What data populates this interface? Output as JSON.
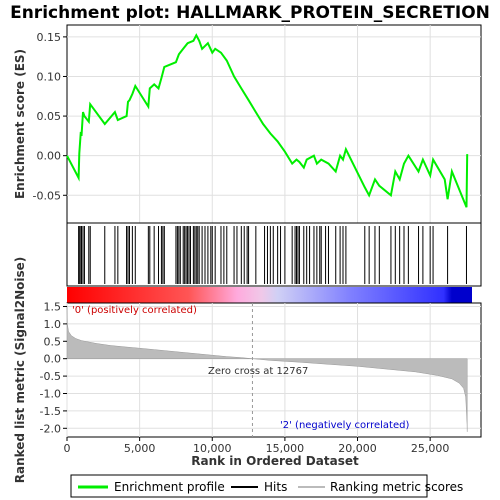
{
  "chart_data": [
    {
      "type": "line",
      "title": "Enrichment plot: HALLMARK_PROTEIN_SECRETION",
      "ylabel": "Enrichment score (ES)",
      "xlim": [
        0,
        28500
      ],
      "ylim": [
        -0.085,
        0.165
      ],
      "yticks": [
        -0.05,
        0.0,
        0.05,
        0.1,
        0.15
      ],
      "ytick_labels": [
        "-0.05",
        "0.00",
        "0.05",
        "0.10",
        "0.15"
      ],
      "series": [
        {
          "name": "Enrichment profile",
          "color": "#00ee00",
          "x": [
            0,
            800,
            850,
            950,
            1000,
            1100,
            1200,
            1500,
            1600,
            2600,
            3300,
            3500,
            4100,
            4200,
            4300,
            4500,
            4700,
            5600,
            5700,
            6000,
            6300,
            6500,
            6700,
            7500,
            7700,
            8000,
            8300,
            8700,
            8900,
            9100,
            9300,
            9700,
            10000,
            10200,
            10600,
            11000,
            11500,
            12000,
            12500,
            13000,
            13500,
            14000,
            14500,
            15000,
            15500,
            15800,
            16000,
            16300,
            16500,
            17000,
            17200,
            17500,
            18000,
            18500,
            18800,
            19000,
            19200,
            20500,
            20800,
            21200,
            21500,
            22300,
            22600,
            22900,
            23200,
            23500,
            24200,
            24500,
            25000,
            25200,
            26000,
            26200,
            26500,
            27500,
            27550
          ],
          "y": [
            0.0,
            -0.028,
            0.003,
            0.03,
            0.025,
            0.055,
            0.05,
            0.043,
            0.065,
            0.04,
            0.055,
            0.045,
            0.05,
            0.068,
            0.07,
            0.078,
            0.088,
            0.062,
            0.085,
            0.09,
            0.085,
            0.098,
            0.112,
            0.118,
            0.128,
            0.135,
            0.142,
            0.145,
            0.152,
            0.145,
            0.135,
            0.142,
            0.13,
            0.135,
            0.13,
            0.12,
            0.1,
            0.085,
            0.07,
            0.055,
            0.04,
            0.028,
            0.018,
            0.005,
            -0.01,
            -0.005,
            -0.008,
            -0.015,
            -0.005,
            0.0,
            -0.01,
            -0.005,
            -0.01,
            -0.02,
            0.0,
            -0.005,
            0.008,
            -0.04,
            -0.05,
            -0.03,
            -0.038,
            -0.05,
            -0.02,
            -0.03,
            -0.01,
            0.0,
            -0.02,
            -0.005,
            -0.025,
            -0.005,
            -0.03,
            -0.055,
            -0.02,
            -0.065,
            0.002
          ]
        }
      ],
      "xlabel": "",
      "grid": true
    },
    {
      "type": "hits",
      "hit_positions": [
        800,
        850,
        950,
        1000,
        1100,
        1200,
        1500,
        1600,
        2600,
        3300,
        3500,
        4100,
        4200,
        4300,
        4500,
        4700,
        5600,
        5700,
        6000,
        6300,
        6500,
        6600,
        6700,
        7500,
        7600,
        7700,
        7800,
        8000,
        8100,
        8200,
        8300,
        8400,
        8500,
        8700,
        8800,
        8900,
        9000,
        9100,
        9300,
        9500,
        9700,
        9900,
        10000,
        10200,
        10600,
        10800,
        11000,
        11500,
        11700,
        12000,
        12200,
        12400,
        12500,
        13000,
        13600,
        13800,
        14000,
        14200,
        14500,
        14700,
        15000,
        15500,
        15700,
        15800,
        15900,
        16000,
        16300,
        16500,
        16700,
        17000,
        17200,
        17400,
        17500,
        17800,
        18000,
        18500,
        18800,
        19000,
        19200,
        20500,
        20800,
        21200,
        21500,
        22300,
        22600,
        22900,
        23200,
        23500,
        24200,
        24500,
        25000,
        25200,
        26200,
        27500
      ]
    },
    {
      "type": "area",
      "ylabel": "Ranked list metric (Signal2Noise)",
      "xlabel": "Rank in Ordered Dataset",
      "xlim": [
        0,
        28500
      ],
      "ylim": [
        -2.25,
        1.6
      ],
      "yticks": [
        -2.0,
        -1.5,
        -1.0,
        -0.5,
        0.0,
        0.5,
        1.0,
        1.5
      ],
      "ytick_labels": [
        "-2.0",
        "-1.5",
        "-1.0",
        "-0.5",
        "0.0",
        "0.5",
        "1.0",
        "1.5"
      ],
      "xticks": [
        0,
        5000,
        10000,
        15000,
        20000,
        25000
      ],
      "xtick_labels": [
        "0",
        "5,000",
        "10,000",
        "15,000",
        "20,000",
        "25,000"
      ],
      "x": [
        0,
        30,
        100,
        300,
        600,
        1000,
        2000,
        3000,
        4000,
        5000,
        6000,
        7000,
        8000,
        9000,
        10000,
        11000,
        12000,
        12767,
        14000,
        16000,
        18000,
        20000,
        22000,
        24000,
        25500,
        26500,
        27000,
        27300,
        27450,
        27540,
        27550
      ],
      "y": [
        1.5,
        1.0,
        0.78,
        0.66,
        0.58,
        0.52,
        0.44,
        0.38,
        0.34,
        0.3,
        0.26,
        0.22,
        0.18,
        0.14,
        0.1,
        0.06,
        0.03,
        0.0,
        -0.05,
        -0.1,
        -0.16,
        -0.22,
        -0.3,
        -0.38,
        -0.48,
        -0.58,
        -0.7,
        -0.85,
        -1.1,
        -1.9,
        -2.1
      ],
      "annotations": {
        "positive": "'0' (positively correlated)",
        "negative": "'2' (negatively correlated)",
        "zero_cross": "Zero cross at 12767"
      },
      "zero_cross": 12767,
      "grid": true
    }
  ],
  "legend": {
    "placement": "bottom",
    "items": [
      {
        "label": "Enrichment profile",
        "color": "#00ee00"
      },
      {
        "label": "Hits",
        "color": "#000000"
      },
      {
        "label": "Ranking metric scores",
        "color": "#bbbbbb"
      }
    ]
  },
  "colors": {
    "profile": "#00ee00",
    "metric_fill": "#bbbbbb",
    "grid": "#e0e0e0",
    "positive_bar": "#ff0000",
    "negative_bar": "#0000ff"
  }
}
